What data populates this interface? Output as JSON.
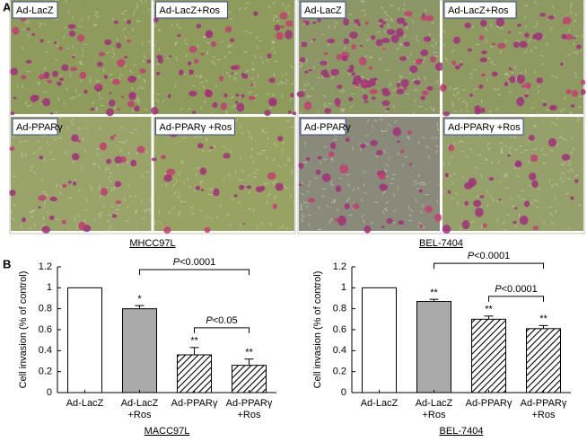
{
  "panel_a": {
    "letter": "A",
    "groups": [
      {
        "label": "MHCC97L",
        "images": [
          "Ad-LacZ",
          "Ad-LacZ+Ros",
          "Ad-PPARγ",
          "Ad-PPARγ +Ros"
        ]
      },
      {
        "label": "BEL-7404",
        "images": [
          "Ad-LacZ",
          "Ad-LacZ+Ros",
          "Ad-PPARγ",
          "Ad-PPARγ +Ros"
        ]
      }
    ]
  },
  "panel_b": {
    "letter": "B"
  },
  "chart_data": [
    {
      "type": "bar",
      "ylabel": "Cell invasion (% of control)",
      "xlabel": "MACC97L",
      "categories": [
        [
          "Ad-LacZ"
        ],
        [
          "Ad-LacZ",
          "+Ros"
        ],
        [
          "Ad-PPARγ"
        ],
        [
          "Ad-PPARγ",
          "+Ros"
        ]
      ],
      "values": [
        1.0,
        0.8,
        0.36,
        0.26
      ],
      "errors": [
        null,
        0.03,
        0.07,
        0.06
      ],
      "bar_styles": [
        "#ffffff",
        "#aaaaaa",
        "hatch",
        "hatch"
      ],
      "stars": [
        null,
        "*",
        "**",
        "**"
      ],
      "annotations": [
        {
          "text": "P<0.0001",
          "from": 1,
          "to": 3
        },
        {
          "text": "P<0.05",
          "from": 2,
          "to": 3
        }
      ],
      "ylim": [
        0,
        1.2
      ],
      "yticks": [
        0,
        0.2,
        0.4,
        0.6,
        0.8,
        1,
        1.2
      ]
    },
    {
      "type": "bar",
      "ylabel": "Cell invasion (% of control)",
      "xlabel": "BEL-7404",
      "categories": [
        [
          "Ad-LacZ"
        ],
        [
          "Ad-LacZ",
          "+Ros"
        ],
        [
          "Ad-PPARγ"
        ],
        [
          "Ad-PPARγ",
          "+Ros"
        ]
      ],
      "values": [
        1.0,
        0.87,
        0.7,
        0.61
      ],
      "errors": [
        null,
        0.02,
        0.03,
        0.03
      ],
      "bar_styles": [
        "#ffffff",
        "#aaaaaa",
        "hatch",
        "hatch"
      ],
      "stars": [
        null,
        "**",
        "**",
        "**"
      ],
      "annotations": [
        {
          "text": "P<0.0001",
          "from": 1,
          "to": 3
        },
        {
          "text": "P<0.0001",
          "from": 2,
          "to": 3
        }
      ],
      "ylim": [
        0,
        1.2
      ],
      "yticks": [
        0,
        0.2,
        0.4,
        0.6,
        0.8,
        1,
        1.2
      ]
    }
  ]
}
